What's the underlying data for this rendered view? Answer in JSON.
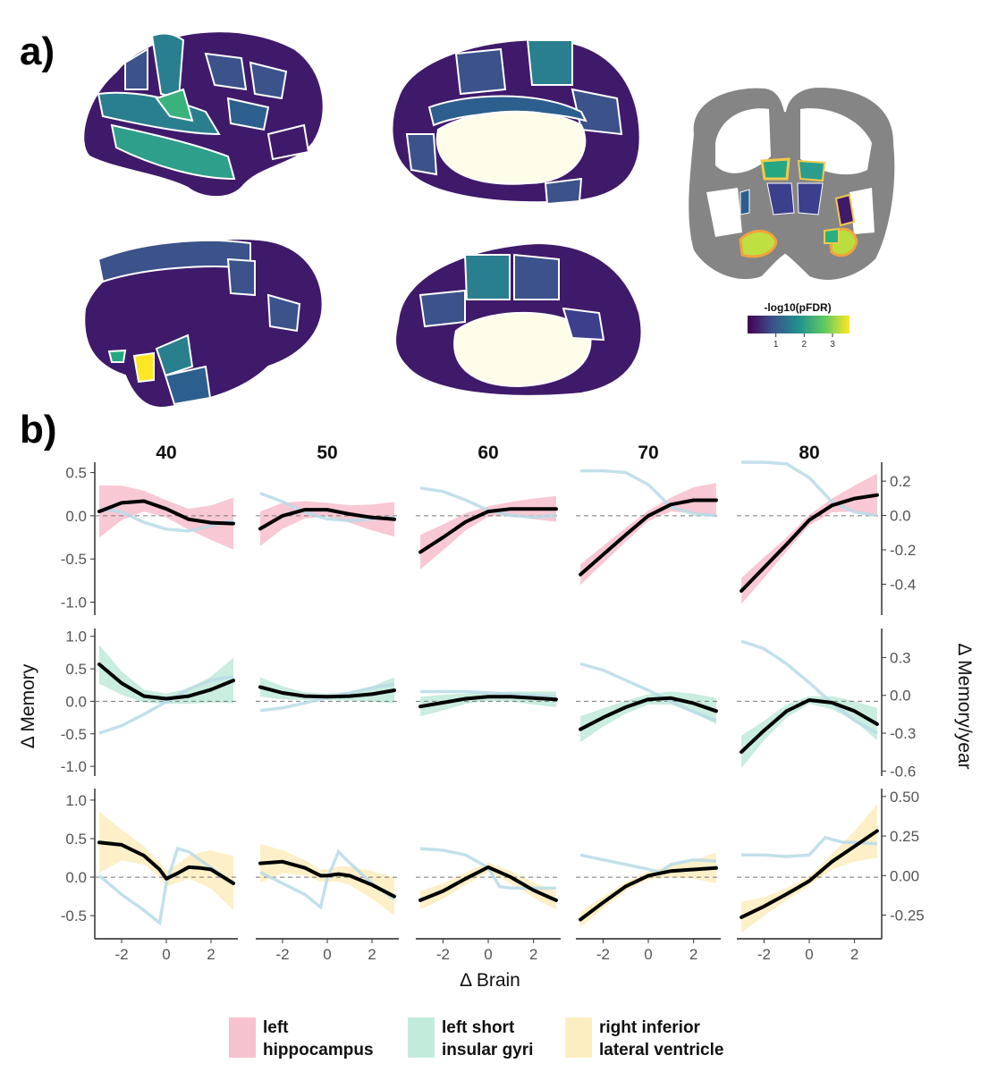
{
  "panel_a": {
    "label": "a)",
    "colorbar": {
      "title": "-log10(pFDR)",
      "ticks": [
        "1",
        "2",
        "3"
      ],
      "range": [
        0,
        3.6
      ],
      "colors": [
        "#440154",
        "#3b528b",
        "#21908d",
        "#5dc963",
        "#fde725"
      ]
    },
    "region_colors": {
      "background_region": "#3f1a6b",
      "low": "#3b528b",
      "mid": "#2a7f8e",
      "high": "#25a882",
      "top": "#fde725",
      "medial_wall": "#fdfdea",
      "slice_gray": "#858585"
    }
  },
  "panel_b": {
    "label": "b)",
    "xlabel": "Δ Brain",
    "ylabel_left": "Δ Memory",
    "ylabel_right": "Δ Memory/year",
    "legend": [
      {
        "label_line1": "left",
        "label_line2": "hippocampus",
        "color": "#f7c2cf"
      },
      {
        "label_line1": "left short",
        "label_line2": "insular gyri",
        "color": "#c3ebdc"
      },
      {
        "label_line1": "right inferior",
        "label_line2": "lateral ventricle",
        "color": "#fdeec2"
      }
    ]
  },
  "chart_data": {
    "type": "line",
    "facets_columns": [
      "40",
      "50",
      "60",
      "70",
      "80"
    ],
    "x_ticks": [
      "-2",
      "0",
      "2"
    ],
    "xlim": [
      -3.2,
      3.2
    ],
    "rows": [
      {
        "region": "left hippocampus",
        "band_color": "#f7c2cf",
        "ylim_left": [
          -1.15,
          0.62
        ],
        "yticks_left": [
          "0.5",
          "0.0",
          "-0.5",
          "-1.0"
        ],
        "yticks_left_values": [
          0.5,
          0.0,
          -0.5,
          -1.0
        ],
        "ylim_right": [
          -0.58,
          0.31
        ],
        "yticks_right": [
          "0.2",
          "0.0",
          "-0.2",
          "-0.4"
        ],
        "yticks_right_values": [
          0.2,
          0.0,
          -0.2,
          -0.4
        ],
        "panels": [
          {
            "age": "40",
            "x": [
              -3,
              -2,
              -1,
              0,
              1,
              2,
              3
            ],
            "memory": [
              0.05,
              0.15,
              0.17,
              0.08,
              -0.04,
              -0.08,
              -0.09
            ],
            "band": [
              0.3,
              0.2,
              0.12,
              0.1,
              0.12,
              0.2,
              0.3
            ],
            "rate_x": [
              -3,
              -2,
              -1,
              0,
              1,
              2,
              3
            ],
            "rate": [
              0.04,
              0.02,
              -0.04,
              -0.08,
              -0.09,
              -0.06,
              -0.03
            ]
          },
          {
            "age": "50",
            "x": [
              -3,
              -2,
              -1,
              0,
              1,
              2,
              3
            ],
            "memory": [
              -0.15,
              0.0,
              0.07,
              0.07,
              0.02,
              -0.02,
              -0.04
            ],
            "band": [
              0.2,
              0.15,
              0.1,
              0.08,
              0.1,
              0.15,
              0.2
            ],
            "rate_x": [
              -3,
              -2,
              -1,
              0,
              1,
              2,
              3
            ],
            "rate": [
              0.13,
              0.08,
              0.02,
              -0.02,
              -0.03,
              -0.02,
              -0.01
            ]
          },
          {
            "age": "60",
            "x": [
              -3,
              -2,
              -1,
              0,
              1,
              2,
              3
            ],
            "memory": [
              -0.42,
              -0.25,
              -0.07,
              0.05,
              0.08,
              0.08,
              0.08
            ],
            "band": [
              0.2,
              0.15,
              0.1,
              0.06,
              0.08,
              0.12,
              0.15
            ],
            "rate_x": [
              -3,
              -2,
              -1,
              0,
              1,
              2,
              3
            ],
            "rate": [
              0.16,
              0.14,
              0.09,
              0.03,
              0.0,
              -0.01,
              0.0
            ]
          },
          {
            "age": "70",
            "x": [
              -3,
              -2,
              -1,
              0,
              1,
              2,
              3
            ],
            "memory": [
              -0.68,
              -0.45,
              -0.22,
              0.0,
              0.13,
              0.18,
              0.18
            ],
            "band": [
              0.12,
              0.1,
              0.08,
              0.06,
              0.08,
              0.15,
              0.2
            ],
            "rate_x": [
              -3,
              -2,
              -1,
              0,
              1,
              2,
              3
            ],
            "rate": [
              0.26,
              0.26,
              0.25,
              0.18,
              0.05,
              0.01,
              0.0
            ]
          },
          {
            "age": "80",
            "x": [
              -3,
              -2,
              -1,
              0,
              1,
              2,
              3
            ],
            "memory": [
              -0.87,
              -0.6,
              -0.33,
              -0.05,
              0.12,
              0.2,
              0.24
            ],
            "band": [
              0.15,
              0.12,
              0.08,
              0.06,
              0.08,
              0.15,
              0.25
            ],
            "rate_x": [
              -3,
              -2,
              -1,
              0,
              1,
              2,
              3
            ],
            "rate": [
              0.31,
              0.31,
              0.3,
              0.22,
              0.08,
              0.02,
              0.0
            ]
          }
        ]
      },
      {
        "region": "left short insular gyri",
        "band_color": "#c3ebdc",
        "ylim_left": [
          -1.15,
          1.12
        ],
        "yticks_left": [
          "1.0",
          "0.5",
          "0.0",
          "-0.5",
          "-1.0"
        ],
        "yticks_left_values": [
          1.0,
          0.5,
          0.0,
          -0.5,
          -1.0
        ],
        "ylim_right": [
          -0.64,
          0.53
        ],
        "yticks_right": [
          "0.3",
          "0.0",
          "-0.3",
          "-0.6"
        ],
        "yticks_right_values": [
          0.3,
          0.0,
          -0.3,
          -0.6
        ],
        "panels": [
          {
            "age": "40",
            "x": [
              -3,
              -2,
              -1,
              0,
              1,
              2,
              3
            ],
            "memory": [
              0.57,
              0.28,
              0.08,
              0.04,
              0.08,
              0.18,
              0.32
            ],
            "band": [
              0.3,
              0.18,
              0.1,
              0.08,
              0.12,
              0.2,
              0.35
            ],
            "rate_x": [
              -3,
              -2,
              -1,
              0,
              1,
              2,
              3
            ],
            "rate": [
              -0.3,
              -0.24,
              -0.15,
              -0.05,
              0.05,
              0.12,
              0.15
            ]
          },
          {
            "age": "50",
            "x": [
              -3,
              -2,
              -1,
              0,
              1,
              2,
              3
            ],
            "memory": [
              0.22,
              0.13,
              0.08,
              0.07,
              0.08,
              0.11,
              0.17
            ],
            "band": [
              0.15,
              0.1,
              0.06,
              0.05,
              0.07,
              0.12,
              0.2
            ],
            "rate_x": [
              -3,
              -2,
              -1,
              0,
              1,
              2,
              3
            ],
            "rate": [
              -0.12,
              -0.1,
              -0.06,
              -0.02,
              0.02,
              0.06,
              0.09
            ]
          },
          {
            "age": "60",
            "x": [
              -3,
              -2,
              -1,
              0,
              1,
              2,
              3
            ],
            "memory": [
              -0.08,
              -0.02,
              0.04,
              0.07,
              0.07,
              0.05,
              0.03
            ],
            "band": [
              0.15,
              0.12,
              0.08,
              0.06,
              0.08,
              0.1,
              0.12
            ],
            "rate_x": [
              -3,
              -2,
              -1,
              0,
              1,
              2,
              3
            ],
            "rate": [
              0.03,
              0.03,
              0.03,
              0.02,
              0.01,
              0.0,
              -0.01
            ]
          },
          {
            "age": "70",
            "x": [
              -3,
              -2,
              -1,
              0,
              1,
              2,
              3
            ],
            "memory": [
              -0.43,
              -0.25,
              -0.09,
              0.03,
              0.05,
              -0.03,
              -0.15
            ],
            "band": [
              0.2,
              0.14,
              0.1,
              0.08,
              0.1,
              0.15,
              0.2
            ],
            "rate_x": [
              -3,
              -2,
              -1,
              0,
              1,
              2,
              3
            ],
            "rate": [
              0.25,
              0.2,
              0.12,
              0.04,
              -0.05,
              -0.13,
              -0.2
            ]
          },
          {
            "age": "80",
            "x": [
              -3,
              -2,
              -1,
              0,
              1,
              2,
              3
            ],
            "memory": [
              -0.78,
              -0.45,
              -0.15,
              0.02,
              -0.02,
              -0.15,
              -0.35
            ],
            "band": [
              0.25,
              0.15,
              0.1,
              0.06,
              0.1,
              0.15,
              0.25
            ],
            "rate_x": [
              -3,
              -2,
              -1,
              0,
              1,
              2,
              3
            ],
            "rate": [
              0.43,
              0.37,
              0.25,
              0.1,
              -0.06,
              -0.2,
              -0.3
            ]
          }
        ]
      },
      {
        "region": "right inferior lateral ventricle",
        "band_color": "#fdeec2",
        "ylim_left": [
          -0.8,
          1.15
        ],
        "yticks_left": [
          "1.0",
          "0.5",
          "0.0",
          "-0.5"
        ],
        "yticks_left_values": [
          1.0,
          0.5,
          0.0,
          -0.5
        ],
        "ylim_right": [
          -0.4,
          0.55
        ],
        "yticks_right": [
          "0.50",
          "0.25",
          "0.00",
          "-0.25"
        ],
        "yticks_right_values": [
          0.5,
          0.25,
          0.0,
          -0.25
        ],
        "panels": [
          {
            "age": "40",
            "x": [
              -3,
              -2,
              -1,
              -0.3,
              0,
              0.5,
              1,
              1.5,
              2,
              3
            ],
            "memory": [
              0.45,
              0.42,
              0.28,
              0.1,
              -0.02,
              0.05,
              0.13,
              0.12,
              0.1,
              -0.08
            ],
            "band": [
              0.4,
              0.2,
              0.12,
              0.1,
              0.1,
              0.12,
              0.15,
              0.2,
              0.25,
              0.35
            ],
            "rate_x": [
              -3,
              -2,
              -1,
              -0.3,
              0,
              0.5,
              1,
              2,
              3
            ],
            "rate": [
              0.0,
              -0.12,
              -0.22,
              -0.3,
              -0.05,
              0.17,
              0.15,
              0.05,
              -0.05
            ]
          },
          {
            "age": "50",
            "x": [
              -3,
              -2,
              -1,
              -0.3,
              0,
              0.5,
              1,
              2,
              3
            ],
            "memory": [
              0.18,
              0.2,
              0.12,
              0.02,
              0.02,
              0.04,
              0.02,
              -0.1,
              -0.25
            ],
            "band": [
              0.25,
              0.15,
              0.1,
              0.08,
              0.08,
              0.1,
              0.12,
              0.18,
              0.25
            ],
            "rate_x": [
              -3,
              -2,
              -1,
              -0.3,
              0,
              0.5,
              1,
              2,
              3
            ],
            "rate": [
              0.02,
              -0.05,
              -0.12,
              -0.2,
              -0.02,
              0.15,
              0.08,
              -0.05,
              -0.15
            ]
          },
          {
            "age": "60",
            "x": [
              -3,
              -2,
              -1,
              0,
              1,
              2,
              3
            ],
            "memory": [
              -0.3,
              -0.18,
              -0.02,
              0.13,
              0.0,
              -0.17,
              -0.3
            ],
            "band": [
              0.12,
              0.1,
              0.08,
              0.06,
              0.08,
              0.1,
              0.12
            ],
            "rate_x": [
              -3,
              -2,
              -1,
              0,
              0.5,
              1,
              2,
              3
            ],
            "rate": [
              0.17,
              0.16,
              0.13,
              0.05,
              -0.07,
              -0.08,
              -0.08,
              -0.08
            ]
          },
          {
            "age": "70",
            "x": [
              -3,
              -2,
              -1,
              0,
              1,
              2,
              3
            ],
            "memory": [
              -0.55,
              -0.33,
              -0.12,
              0.02,
              0.08,
              0.1,
              0.12
            ],
            "band": [
              0.1,
              0.08,
              0.06,
              0.05,
              0.08,
              0.12,
              0.2
            ],
            "rate_x": [
              -3,
              -2,
              -1,
              0,
              0.5,
              1,
              2,
              3
            ],
            "rate": [
              0.13,
              0.1,
              0.07,
              0.04,
              0.02,
              0.07,
              0.1,
              0.09
            ]
          },
          {
            "age": "80",
            "x": [
              -3,
              -2,
              -1,
              0,
              1,
              2,
              3
            ],
            "memory": [
              -0.52,
              -0.38,
              -0.22,
              -0.05,
              0.2,
              0.4,
              0.6
            ],
            "band": [
              0.2,
              0.12,
              0.08,
              0.06,
              0.1,
              0.2,
              0.35
            ],
            "rate_x": [
              -3,
              -2,
              -1,
              0,
              0.7,
              1.5,
              2,
              3
            ],
            "rate": [
              0.13,
              0.13,
              0.12,
              0.13,
              0.24,
              0.21,
              0.21,
              0.2
            ]
          }
        ]
      }
    ]
  }
}
